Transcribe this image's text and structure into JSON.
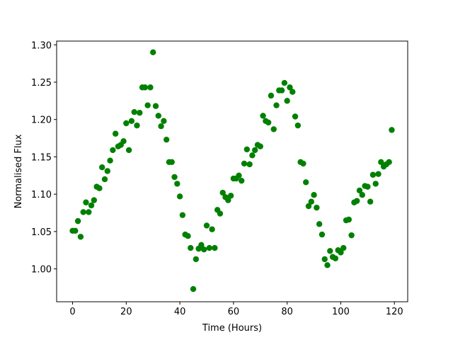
{
  "chart_data": {
    "type": "scatter",
    "x_label": "Time (Hours)",
    "y_label": "Normalised Flux",
    "color": "#008000",
    "xlim": [
      -5.95,
      124.95
    ],
    "ylim": [
      0.956,
      1.305
    ],
    "xticks": [
      0,
      20,
      40,
      60,
      80,
      100,
      120
    ],
    "yticks": [
      {
        "value": 1.0,
        "label": "1.00"
      },
      1.05,
      {
        "value": 1.1,
        "label": "1.10"
      },
      1.15,
      {
        "value": 1.2,
        "label": "1.20"
      },
      1.25,
      {
        "value": 1.3,
        "label": "1.30"
      }
    ],
    "x": [
      0,
      1,
      2,
      3,
      4,
      5,
      6,
      7,
      8,
      9,
      10,
      11,
      12,
      13,
      14,
      15,
      16,
      17,
      18,
      19,
      20,
      21,
      22,
      23,
      24,
      25,
      26,
      27,
      28,
      29,
      30,
      31,
      32,
      33,
      34,
      35,
      36,
      37,
      38,
      39,
      40,
      41,
      42,
      43,
      44,
      45,
      46,
      47,
      48,
      49,
      50,
      51,
      52,
      53,
      54,
      55,
      56,
      57,
      58,
      59,
      60,
      61,
      62,
      63,
      64,
      65,
      66,
      67,
      68,
      69,
      70,
      71,
      72,
      73,
      74,
      75,
      76,
      77,
      78,
      79,
      80,
      81,
      82,
      83,
      84,
      85,
      86,
      87,
      88,
      89,
      90,
      91,
      92,
      93,
      94,
      95,
      96,
      97,
      98,
      99,
      100,
      101,
      102,
      103,
      104,
      105,
      106,
      107,
      108,
      109,
      110,
      111,
      112,
      113,
      114,
      115,
      116,
      117,
      118,
      119
    ],
    "values": [
      1.051,
      1.051,
      1.064,
      1.043,
      1.076,
      1.089,
      1.076,
      1.085,
      1.092,
      1.11,
      1.108,
      1.136,
      1.12,
      1.131,
      1.145,
      1.159,
      1.181,
      1.164,
      1.166,
      1.171,
      1.195,
      1.159,
      1.198,
      1.21,
      1.192,
      1.209,
      1.243,
      1.243,
      1.219,
      1.243,
      1.29,
      1.218,
      1.205,
      1.191,
      1.198,
      1.173,
      1.143,
      1.143,
      1.123,
      1.114,
      1.097,
      1.072,
      1.046,
      1.044,
      1.028,
      0.973,
      1.013,
      1.027,
      1.032,
      1.026,
      1.058,
      1.028,
      1.053,
      1.028,
      1.079,
      1.074,
      1.102,
      1.096,
      1.092,
      1.098,
      1.121,
      1.121,
      1.125,
      1.118,
      1.141,
      1.16,
      1.14,
      1.152,
      1.159,
      1.166,
      1.164,
      1.205,
      1.198,
      1.196,
      1.232,
      1.187,
      1.219,
      1.239,
      1.239,
      1.249,
      1.225,
      1.243,
      1.237,
      1.204,
      1.192,
      1.143,
      1.141,
      1.116,
      1.084,
      1.09,
      1.099,
      1.082,
      1.06,
      1.046,
      1.013,
      1.005,
      1.024,
      1.016,
      1.014,
      1.025,
      1.022,
      1.028,
      1.065,
      1.066,
      1.045,
      1.089,
      1.091,
      1.105,
      1.099,
      1.111,
      1.11,
      1.09,
      1.126,
      1.114,
      1.127,
      1.143,
      1.137,
      1.14,
      1.143,
      1.186
    ]
  }
}
